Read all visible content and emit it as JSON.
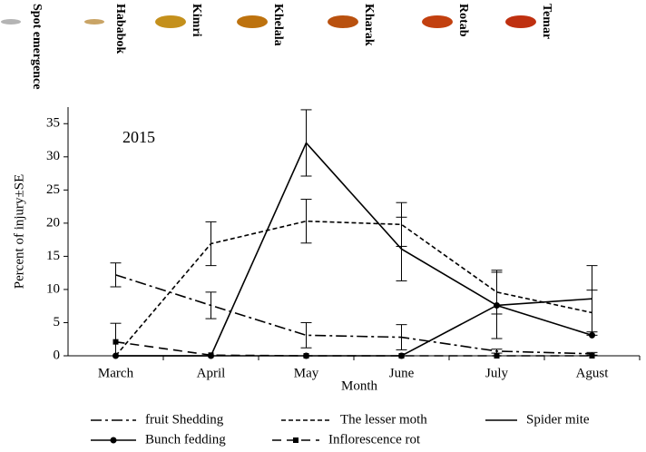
{
  "chart_data": {
    "type": "line",
    "stage_legend": [
      {
        "label": "Spot emergence",
        "color": "#b4b4b4"
      },
      {
        "label": "Hababok",
        "color": "#c9a466"
      },
      {
        "label": "Kimri",
        "color": "#c4901c"
      },
      {
        "label": "Khelala",
        "color": "#bd720e"
      },
      {
        "label": "Kharak",
        "color": "#b9510f"
      },
      {
        "label": "Rotab",
        "color": "#c2400f"
      },
      {
        "label": "Temar",
        "color": "#bf3010"
      }
    ],
    "annotation": "2015",
    "y_label": "Percent of injury±SE",
    "x_label": "Month",
    "categories": [
      "March",
      "April",
      "May",
      "June",
      "July",
      "Agust"
    ],
    "ylim": [
      0,
      37.5
    ],
    "yticks": [
      0,
      5,
      10,
      15,
      20,
      25,
      30,
      35
    ],
    "series": [
      {
        "name": "fruit Shedding",
        "color": "#000000",
        "style": "dashdot",
        "values": [
          12.2,
          7.6,
          3.1,
          2.8,
          0.7,
          0.3
        ],
        "errors": [
          1.8,
          2.0,
          1.9,
          1.9,
          0.3,
          0.2
        ]
      },
      {
        "name": "The lesser moth",
        "color": "#000000",
        "style": "dashed",
        "values": [
          0,
          16.9,
          20.3,
          19.8,
          9.6,
          6.5
        ],
        "errors": [
          0,
          3.3,
          3.3,
          3.3,
          3.3,
          3.4
        ]
      },
      {
        "name": "Spider mite",
        "color": "#000000",
        "style": "solid",
        "values": [
          0,
          0,
          32.1,
          16.1,
          7.6,
          8.6
        ],
        "errors": [
          0,
          0,
          5.0,
          4.8,
          5.0,
          5.0
        ]
      },
      {
        "name": "Bunch fedding",
        "color": "#000000",
        "style": "solid",
        "marker": "circle",
        "values": [
          0,
          0,
          0,
          0,
          7.6,
          3.1
        ]
      },
      {
        "name": "Inflorescence rot",
        "color": "#000000",
        "style": "longdash",
        "marker": "square",
        "values": [
          2.1,
          0.1,
          0,
          0,
          0,
          0
        ],
        "errors": [
          2.8,
          0,
          0,
          0,
          0,
          0
        ]
      }
    ]
  }
}
